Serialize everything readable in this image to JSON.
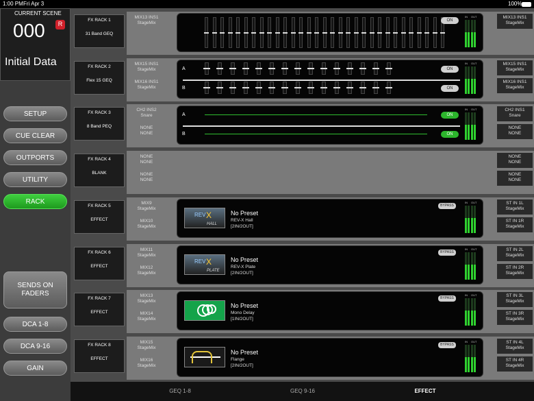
{
  "status_bar": {
    "time": "1:00 PM",
    "date": "Fri Apr 3",
    "battery": "100%"
  },
  "scene": {
    "label": "CURRENT SCENE",
    "number": "000",
    "badge": "R",
    "name": "Initial Data"
  },
  "menu": [
    "SETUP",
    "CUE CLEAR",
    "OUTPORTS",
    "UTILITY",
    "RACK"
  ],
  "active_menu": "RACK",
  "lower_menu": [
    "SENDS ON FADERS",
    "DCA 1-8",
    "DCA 9-16",
    "GAIN"
  ],
  "meter_labels": [
    "IN",
    "OUT"
  ],
  "on_label": "ON",
  "bypass_label": "BYPASS",
  "racks": [
    {
      "title": "FX RACK 1",
      "kind": "31 Band GEQ",
      "mode": "geq31",
      "inputs": [
        [
          "MIX13 INS1",
          "StageMix"
        ]
      ],
      "outputs": [
        [
          "MIX13 INS1",
          "StageMix"
        ]
      ]
    },
    {
      "title": "FX RACK 2",
      "kind": "Flex 15 GEQ",
      "mode": "geq15",
      "channels": [
        "A",
        "B"
      ],
      "inputs": [
        [
          "MIX15 INS1",
          "StageMix"
        ],
        [
          "MIX16 INS1",
          "StageMix"
        ]
      ],
      "outputs": [
        [
          "MIX15 INS1",
          "StageMix"
        ],
        [
          "MIX16 INS1",
          "StageMix"
        ]
      ]
    },
    {
      "title": "FX RACK 3",
      "kind": "8 Band PEQ",
      "mode": "peq",
      "channels": [
        "A",
        "B"
      ],
      "inputs": [
        [
          "CH2 INS2",
          "Snare"
        ],
        [
          "NONE",
          "NONE"
        ]
      ],
      "outputs": [
        [
          "CH2 INS1",
          "Snare"
        ],
        [
          "NONE",
          "NONE"
        ]
      ]
    },
    {
      "title": "FX RACK 4",
      "kind": "BLANK",
      "mode": "blank",
      "inputs": [
        [
          "NONE",
          "NONE"
        ],
        [
          "NONE",
          "NONE"
        ]
      ],
      "outputs": [
        [
          "NONE",
          "NONE"
        ],
        [
          "NONE",
          "NONE"
        ]
      ]
    },
    {
      "title": "FX RACK 5",
      "kind": "EFFECT",
      "mode": "effect",
      "inputs": [
        [
          "MIX9",
          "StageMix"
        ],
        [
          "MIX10",
          "StageMix"
        ]
      ],
      "outputs": [
        [
          "ST IN 1L",
          "StageMix"
        ],
        [
          "ST IN 1R",
          "StageMix"
        ]
      ],
      "preset": "No Preset",
      "effect": "REV-X Hall",
      "io": "[2IN/2OUT]",
      "icon": "revx",
      "icon_main": "REV",
      "icon_x": "X",
      "icon_sub": "HALL"
    },
    {
      "title": "FX RACK 6",
      "kind": "EFFECT",
      "mode": "effect",
      "inputs": [
        [
          "MIX11",
          "StageMix"
        ],
        [
          "MIX12",
          "StageMix"
        ]
      ],
      "outputs": [
        [
          "ST IN 2L",
          "StageMix"
        ],
        [
          "ST IN 2R",
          "StageMix"
        ]
      ],
      "preset": "No Preset",
      "effect": "REV-X Plate",
      "io": "[2IN/2OUT]",
      "icon": "revx",
      "icon_main": "REV",
      "icon_x": "X",
      "icon_sub": "PLATE"
    },
    {
      "title": "FX RACK 7",
      "kind": "EFFECT",
      "mode": "effect",
      "inputs": [
        [
          "MIX13",
          "StageMix"
        ],
        [
          "MIX14",
          "StageMix"
        ]
      ],
      "outputs": [
        [
          "ST IN 3L",
          "StageMix"
        ],
        [
          "ST IN 3R",
          "StageMix"
        ]
      ],
      "preset": "No Preset",
      "effect": "Mono Delay",
      "io": "[1IN/2OUT]",
      "icon": "delay"
    },
    {
      "title": "FX RACK 8",
      "kind": "EFFECT",
      "mode": "effect",
      "inputs": [
        [
          "MIX15",
          "StageMix"
        ],
        [
          "MIX16",
          "StageMix"
        ]
      ],
      "outputs": [
        [
          "ST IN 4L",
          "StageMix"
        ],
        [
          "ST IN 4R",
          "StageMix"
        ]
      ],
      "preset": "No Preset",
      "effect": "Flange",
      "io": "[2IN/2OUT]",
      "icon": "flange"
    }
  ],
  "tabs": [
    "GEQ 1-8",
    "GEQ 9-16",
    "EFFECT"
  ],
  "active_tab": "EFFECT"
}
